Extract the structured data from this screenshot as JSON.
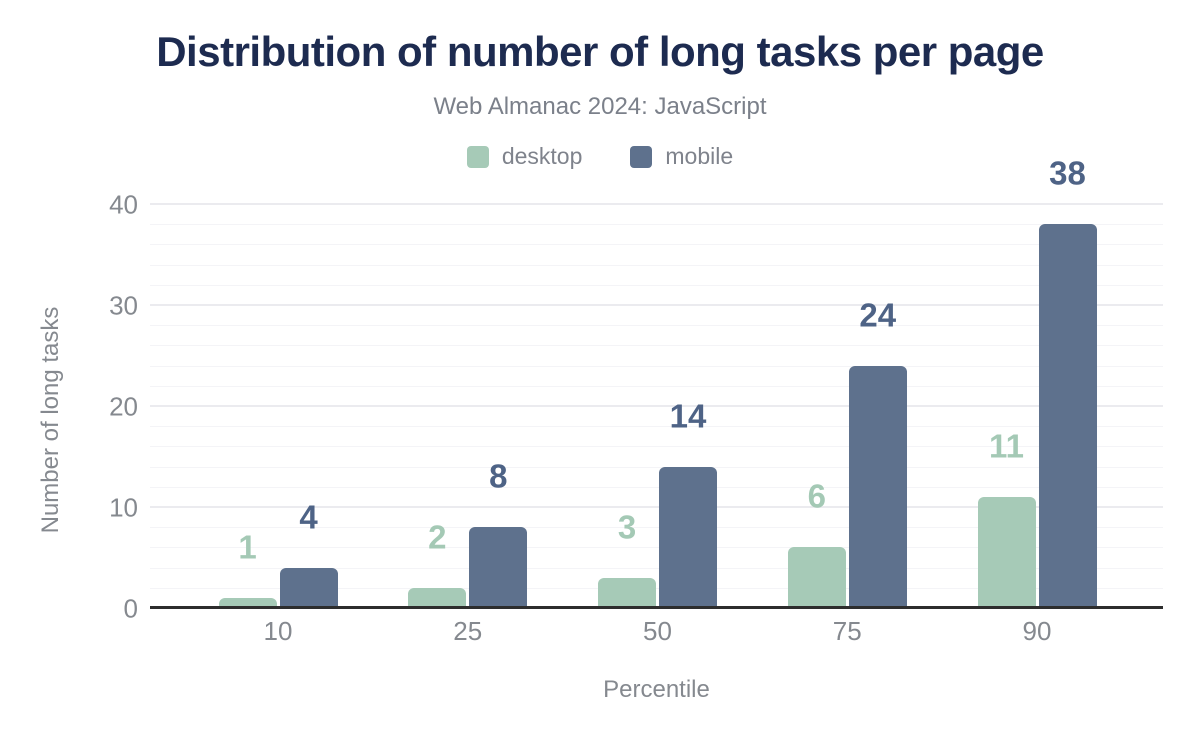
{
  "chart_data": {
    "type": "bar",
    "title": "Distribution of number of long tasks per page",
    "subtitle": "Web Almanac 2024: JavaScript",
    "categories": [
      "10",
      "25",
      "50",
      "75",
      "90"
    ],
    "series": [
      {
        "name": "desktop",
        "color": "#a6cab7",
        "label_color": "#a4c9b5",
        "values": [
          1,
          2,
          3,
          6,
          11
        ]
      },
      {
        "name": "mobile",
        "color": "#5e718d",
        "label_color": "#4e6386",
        "values": [
          4,
          8,
          14,
          24,
          38
        ]
      }
    ],
    "xlabel": "Percentile",
    "ylabel": "Number of long tasks",
    "ylim": [
      0,
      40
    ],
    "yticks": [
      0,
      10,
      20,
      30,
      40
    ],
    "minor_grid_step": 2,
    "major_grid_step": 10,
    "legend_position": "top",
    "grid": true,
    "colors": {
      "title": "#1d2b50",
      "subtitle_text": "#7b808a",
      "axis_text": "#85898f",
      "axis_line": "#2d2d2d",
      "major_gridline": "#ebebef",
      "minor_gridline": "#f4f4f7",
      "background": "#ffffff"
    }
  }
}
